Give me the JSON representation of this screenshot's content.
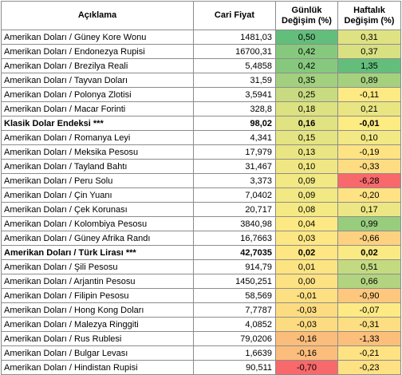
{
  "headers": {
    "description": "Açıklama",
    "price": "Cari Fiyat",
    "daily": [
      "Günlük",
      "Değişim (%)"
    ],
    "weekly": [
      "Haftalık",
      "Değişim (%)"
    ]
  },
  "rows": [
    {
      "name": "Amerikan Doları / Güney Kore Wonu",
      "price": "1481,03",
      "daily": "0,50",
      "daily_color": "#63be7b",
      "weekly": "0,31",
      "weekly_color": "#dfe283",
      "bold": false
    },
    {
      "name": "Amerikan Doları / Endonezya Rupisi",
      "price": "16700,31",
      "daily": "0,42",
      "daily_color": "#86c97e",
      "weekly": "0,37",
      "weekly_color": "#d9e082",
      "bold": false
    },
    {
      "name": "Amerikan Doları / Brezilya Reali",
      "price": "5,4858",
      "daily": "0,42",
      "daily_color": "#86c97e",
      "weekly": "1,35",
      "weekly_color": "#63be7b",
      "bold": false
    },
    {
      "name": "Amerikan Doları / Tayvan Doları",
      "price": "31,59",
      "daily": "0,35",
      "daily_color": "#a2d07f",
      "weekly": "0,89",
      "weekly_color": "#a5d17f",
      "bold": false
    },
    {
      "name": "Amerikan Doları / Polonya Zlotisi",
      "price": "3,5941",
      "daily": "0,25",
      "daily_color": "#c8db81",
      "weekly": "-0,11",
      "weekly_color": "#feea83",
      "bold": false
    },
    {
      "name": "Amerikan Doları / Macar Forinti",
      "price": "328,8",
      "daily": "0,18",
      "daily_color": "#dce182",
      "weekly": "0,21",
      "weekly_color": "#e9e583",
      "bold": false
    },
    {
      "name": "Klasik Dolar Endeksi ***",
      "price": "98,02",
      "daily": "0,16",
      "daily_color": "#e1e383",
      "weekly": "-0,01",
      "weekly_color": "#fdeb84",
      "bold": true
    },
    {
      "name": "Amerikan Doları / Romanya Leyi",
      "price": "4,341",
      "daily": "0,15",
      "daily_color": "#e4e483",
      "weekly": "0,10",
      "weekly_color": "#f2e884",
      "bold": false
    },
    {
      "name": "Amerikan Doları / Meksika Pesosu",
      "price": "17,979",
      "daily": "0,13",
      "daily_color": "#e9e583",
      "weekly": "-0,19",
      "weekly_color": "#fee383",
      "bold": false
    },
    {
      "name": "Amerikan Doları / Tayland Bahtı",
      "price": "31,467",
      "daily": "0,10",
      "daily_color": "#f0e784",
      "weekly": "-0,33",
      "weekly_color": "#fedd82",
      "bold": false
    },
    {
      "name": "Amerikan Doları / Peru Solu",
      "price": "3,373",
      "daily": "0,09",
      "daily_color": "#f2e884",
      "weekly": "-6,28",
      "weekly_color": "#f8696b",
      "bold": false
    },
    {
      "name": "Amerikan Doları / Çin Yuanı",
      "price": "7,0402",
      "daily": "0,09",
      "daily_color": "#f2e884",
      "weekly": "-0,20",
      "weekly_color": "#fee283",
      "bold": false
    },
    {
      "name": "Amerikan Doları / Çek Korunası",
      "price": "20,717",
      "daily": "0,08",
      "daily_color": "#f5e984",
      "weekly": "0,17",
      "weekly_color": "#ede684",
      "bold": false
    },
    {
      "name": "Amerikan Doları / Kolombiya Pesosu",
      "price": "3840,98",
      "daily": "0,04",
      "daily_color": "#fde984",
      "weekly": "0,99",
      "weekly_color": "#98cd7e",
      "bold": false
    },
    {
      "name": "Amerikan Doları / Güney Afrika Randı",
      "price": "16,7663",
      "daily": "0,03",
      "daily_color": "#fde784",
      "weekly": "-0,66",
      "weekly_color": "#fdd17f",
      "bold": false
    },
    {
      "name": "Amerikan Doları / Türk Lirası ***",
      "price": "42,7035",
      "daily": "0,02",
      "daily_color": "#fde683",
      "weekly": "0,02",
      "weekly_color": "#faea84",
      "bold": true
    },
    {
      "name": "Amerikan Doları / Şili Pesosu",
      "price": "914,79",
      "daily": "0,01",
      "daily_color": "#fde483",
      "weekly": "0,51",
      "weekly_color": "#c4da81",
      "bold": false
    },
    {
      "name": "Amerikan Doları / Arjantin Pesosu",
      "price": "1450,251",
      "daily": "0,00",
      "daily_color": "#fde283",
      "weekly": "0,66",
      "weekly_color": "#b2d480",
      "bold": false
    },
    {
      "name": "Amerikan Doları / Filipin Pesosu",
      "price": "58,569",
      "daily": "-0,01",
      "daily_color": "#fde082",
      "weekly": "-0,90",
      "weekly_color": "#fdc87d",
      "bold": false
    },
    {
      "name": "Amerikan Doları / Hong Kong Doları",
      "price": "7,7787",
      "daily": "-0,03",
      "daily_color": "#fddc81",
      "weekly": "-0,07",
      "weekly_color": "#fdea84",
      "bold": false
    },
    {
      "name": "Amerikan Doları / Malezya Ringgiti",
      "price": "4,0852",
      "daily": "-0,03",
      "daily_color": "#fddc81",
      "weekly": "-0,31",
      "weekly_color": "#fdde82",
      "bold": false
    },
    {
      "name": "Amerikan Doları / Rus Rublesi",
      "price": "79,0206",
      "daily": "-0,16",
      "daily_color": "#fbbd7b",
      "weekly": "-1,33",
      "weekly_color": "#fcbf7b",
      "bold": false
    },
    {
      "name": "Amerikan Doları / Bulgar Levası",
      "price": "1,6639",
      "daily": "-0,16",
      "daily_color": "#fbbd7b",
      "weekly": "-0,21",
      "weekly_color": "#fee283",
      "bold": false
    },
    {
      "name": "Amerikan Doları / Hindistan Rupisi",
      "price": "90,511",
      "daily": "-0,70",
      "daily_color": "#f8696b",
      "weekly": "-0,23",
      "weekly_color": "#fee183",
      "bold": false
    }
  ]
}
